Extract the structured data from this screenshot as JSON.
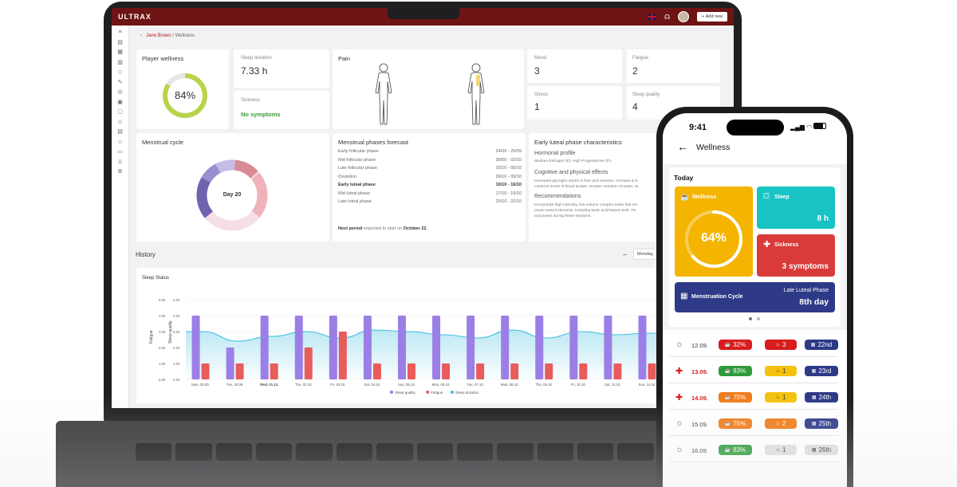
{
  "app": {
    "logo": "ULTRAX",
    "add_new": "+ Add new",
    "breadcrumb": {
      "parent": "Jane Brown",
      "sep": "/",
      "current": "Wellness"
    }
  },
  "colors": {
    "brand": "#6e1414",
    "accent_red": "#b31b1b",
    "ring_green": "#b8d44a",
    "sleep_quality": "#9b7fe6",
    "fatigue": "#e85c5c",
    "sleep_duration": "#3fbfe0"
  },
  "dashboard": {
    "player_wellness": {
      "title": "Player wellness",
      "value": "84%",
      "percent": 84
    },
    "sleep_duration": {
      "label": "Sleep duration",
      "value": "7.33 h"
    },
    "sickness": {
      "label": "Sickness",
      "value": "No symptoms"
    },
    "pain": {
      "title": "Pain"
    },
    "mood": {
      "label": "Mood",
      "value": "3"
    },
    "fatigue": {
      "label": "Fatigue",
      "value": "2"
    },
    "stress": {
      "label": "Stress",
      "value": "1"
    },
    "sleep_quality": {
      "label": "Sleep quality",
      "value": "4"
    },
    "menstrual_cycle": {
      "title": "Menstrual cycle",
      "center": "Day 20"
    },
    "forecast": {
      "title": "Menstrual phases forecast",
      "rows": [
        {
          "phase": "Early follicular phase",
          "dates": "24/09 - 29/09",
          "bold": false
        },
        {
          "phase": "Mid follicular phase",
          "dates": "30/09 - 02/10",
          "bold": false
        },
        {
          "phase": "Late follicular phase",
          "dates": "03/10 - 08/10",
          "bold": false
        },
        {
          "phase": "Ovulation",
          "dates": "09/10 - 09/10",
          "bold": false
        },
        {
          "phase": "Early luteal phase",
          "dates": "10/10 - 16/10",
          "bold": true
        },
        {
          "phase": "Mid luteal phase",
          "dates": "17/10 - 19/10",
          "bold": false
        },
        {
          "phase": "Late luteal phase",
          "dates": "20/10 - 22/10",
          "bold": false
        }
      ],
      "next_label": "Next period",
      "next_text": "expected to start on",
      "next_date": "October 22."
    },
    "characteristics": {
      "title": "Early luteal phase characteristics",
      "hormonal_title": "Hormonal profile",
      "hormonal_text": "Medium Estrogen (E), High Progesterone (P).",
      "cognitive_title": "Cognitive and physical effects",
      "cognitive_text1": "Increased glycogen stores in liver and muscles. Increase in b",
      "cognitive_text2": "Lowered levels of blood lactate. Greater retention of water, sa",
      "recommend_title": "Recommendations",
      "recommend_text1": "Incorporate high-intensity, low-volume complex tasks that em",
      "recommend_text2": "power-based elements, including lactic acid-based work. Pa",
      "recommend_text3": "and power during these sessions."
    },
    "history": {
      "title": "History",
      "date_select": "Monday, "
    }
  },
  "chart_data": {
    "type": "bar",
    "title": "Sleep Status",
    "ylabel_left": "Fatigue",
    "ylabel_right": "Sleep quality",
    "yticks": [
      "0.00",
      "1.00",
      "2.00",
      "3.00",
      "4.00",
      "5.00"
    ],
    "ylim": [
      0,
      5
    ],
    "categories": [
      "Mon, 29.09.",
      "Tue, 30.09.",
      "Wed, 01.10.",
      "Thu, 02.10.",
      "Fri, 03.10.",
      "Sat, 04.10.",
      "Sun, 05.10.",
      "Mon, 06.10.",
      "Tue, 07.10.",
      "Wed, 08.10.",
      "Thu, 09.10.",
      "Fri, 10.10.",
      "Sat, 11.10.",
      "Sun, 12.10."
    ],
    "bold_category": "Wed, 01.10.",
    "series": [
      {
        "name": "Sleep quality",
        "type": "bar",
        "color": "#9b7fe6",
        "values": [
          4,
          2,
          4,
          4,
          4,
          4,
          4,
          4,
          4,
          4,
          4,
          4,
          4,
          4
        ]
      },
      {
        "name": "Fatigue",
        "type": "bar",
        "color": "#e85c5c",
        "values": [
          1,
          1,
          1,
          2,
          3,
          1,
          1,
          1,
          1,
          1,
          1,
          1,
          1,
          1
        ]
      },
      {
        "name": "Sleep duration",
        "type": "area",
        "color": "#3fbfe0",
        "values": [
          3.0,
          2.4,
          2.7,
          3.0,
          2.6,
          3.1,
          3.0,
          2.8,
          2.6,
          3.1,
          2.6,
          3.0,
          2.8,
          2.9
        ]
      }
    ],
    "legend_position": "bottom"
  },
  "phone": {
    "time": "9:41",
    "title": "Wellness",
    "today": "Today",
    "wellness": {
      "label": "Wellness",
      "value": "64%",
      "percent": 64,
      "color": "#f4b400"
    },
    "sleep": {
      "label": "Sleep",
      "value": "8 h",
      "color": "#17c3c3"
    },
    "sickness": {
      "label": "Sickness",
      "value": "3 symptoms",
      "color": "#d93a3a"
    },
    "menstruation": {
      "label": "Menstruation Cycle",
      "phase": "Late Luteal Phase",
      "day": "8th day",
      "color": "#2e3a87"
    },
    "history": [
      {
        "date": "12.09.",
        "icon": "sun-icon",
        "red": false,
        "w": "32%",
        "wc": "#d91c1c",
        "s": "3",
        "sc": "#d91c1c",
        "c": "22nd",
        "cc": "#2e3a87"
      },
      {
        "date": "13.09.",
        "icon": "medical-cross-icon",
        "red": true,
        "w": "83%",
        "wc": "#2e9b3a",
        "s": "1",
        "sc": "#f4c20d",
        "c": "23rd",
        "cc": "#2e3a87"
      },
      {
        "date": "14.09.",
        "icon": "medical-cross-icon",
        "red": true,
        "w": "75%",
        "wc": "#f07c1a",
        "s": "1",
        "sc": "#f4c20d",
        "c": "24th",
        "cc": "#2e3a87"
      },
      {
        "date": "15.09.",
        "icon": "sun-icon",
        "red": false,
        "w": "75%",
        "wc": "#f07c1a",
        "s": "2",
        "sc": "#f07c1a",
        "c": "25th",
        "cc": "#2e3a87"
      },
      {
        "date": "16.09.",
        "icon": "sun-icon",
        "red": false,
        "w": "83%",
        "wc": "#2e9b3a",
        "s": "1",
        "sc": "#dddddd",
        "c": "26th",
        "cc": "#dddddd"
      }
    ]
  }
}
